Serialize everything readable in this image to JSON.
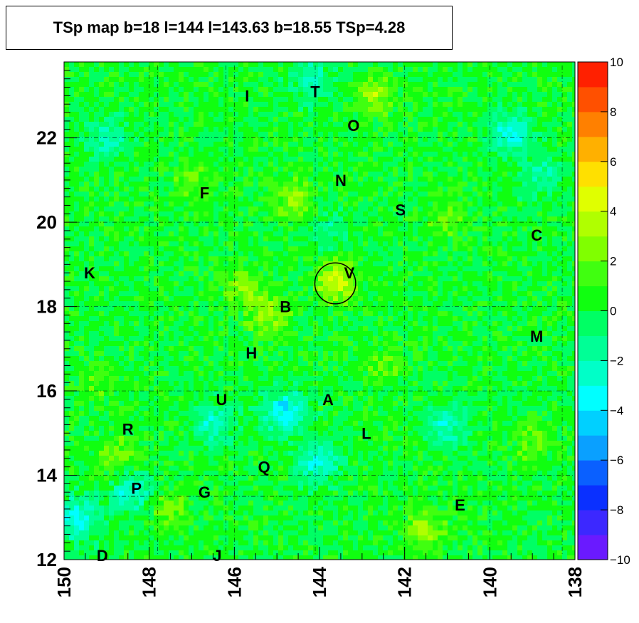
{
  "chart_data": {
    "type": "heatmap",
    "title": "TSp map b=18 l=144 l=143.63 b=18.55 TSp=4.28",
    "x_axis": {
      "range": [
        150,
        138
      ],
      "reversed": true,
      "tick_labels": [
        "150",
        "148",
        "146",
        "144",
        "142",
        "140",
        "138"
      ]
    },
    "y_axis": {
      "range": [
        12,
        23.8
      ],
      "tick_labels": [
        "12",
        "14",
        "16",
        "18",
        "20",
        "22"
      ]
    },
    "colorbar": {
      "range": [
        -10,
        10
      ],
      "tick_labels": [
        "10",
        "8",
        "6",
        "4",
        "2",
        "0",
        "−2",
        "−4",
        "−6",
        "−8",
        "−10"
      ],
      "colors": [
        "#6a1aff",
        "#3c28ff",
        "#0a30ff",
        "#0a60ff",
        "#0aa0ff",
        "#00d0ff",
        "#00ffff",
        "#00ffc8",
        "#00ff96",
        "#00ff64",
        "#10ff10",
        "#40ff10",
        "#80ff00",
        "#b0ff00",
        "#e0ff00",
        "#ffe000",
        "#ffb000",
        "#ff8000",
        "#ff5000",
        "#ff2000"
      ]
    },
    "background_ts": 0.2,
    "hotspots": [
      {
        "l": 143.6,
        "b": 18.6,
        "ts": 4.3
      },
      {
        "l": 145.2,
        "b": 17.8,
        "ts": 3.0
      },
      {
        "l": 142.7,
        "b": 23.0,
        "ts": 3.0
      },
      {
        "l": 144.6,
        "b": 20.5,
        "ts": 2.6
      },
      {
        "l": 141.5,
        "b": 12.7,
        "ts": 2.6
      },
      {
        "l": 145.8,
        "b": 18.5,
        "ts": 2.2
      },
      {
        "l": 147.5,
        "b": 13.2,
        "ts": 2.0
      },
      {
        "l": 148.7,
        "b": 14.5,
        "ts": 2.0
      },
      {
        "l": 141.0,
        "b": 20.1,
        "ts": 1.8
      },
      {
        "l": 139.0,
        "b": 14.8,
        "ts": 1.8
      },
      {
        "l": 142.5,
        "b": 16.6,
        "ts": 1.6
      },
      {
        "l": 147.0,
        "b": 21.0,
        "ts": 1.6
      },
      {
        "l": 149.2,
        "b": 16.2,
        "ts": 1.5
      },
      {
        "l": 144.8,
        "b": 15.5,
        "ts": -4.2
      },
      {
        "l": 144.0,
        "b": 14.3,
        "ts": -3.0
      },
      {
        "l": 139.5,
        "b": 22.1,
        "ts": -3.2
      },
      {
        "l": 141.0,
        "b": 15.2,
        "ts": -2.6
      },
      {
        "l": 149.7,
        "b": 13.0,
        "ts": -3.5
      },
      {
        "l": 148.4,
        "b": 13.6,
        "ts": -3.0
      },
      {
        "l": 146.5,
        "b": 15.2,
        "ts": -2.6
      },
      {
        "l": 149.0,
        "b": 22.0,
        "ts": -2.2
      },
      {
        "l": 144.2,
        "b": 23.4,
        "ts": -2.2
      },
      {
        "l": 138.8,
        "b": 21.1,
        "ts": -2.0
      },
      {
        "l": 143.8,
        "b": 19.8,
        "ts": -1.6
      }
    ],
    "source_circle": {
      "l": 143.63,
      "b": 18.55
    },
    "annotations": [
      {
        "text": "I",
        "l": 145.7,
        "b": 23.0
      },
      {
        "text": "T",
        "l": 144.1,
        "b": 23.1
      },
      {
        "text": "O",
        "l": 143.2,
        "b": 22.3
      },
      {
        "text": "N",
        "l": 143.5,
        "b": 21.0
      },
      {
        "text": "F",
        "l": 146.7,
        "b": 20.7
      },
      {
        "text": "S",
        "l": 142.1,
        "b": 20.3
      },
      {
        "text": "C",
        "l": 138.9,
        "b": 19.7
      },
      {
        "text": "K",
        "l": 149.4,
        "b": 18.8
      },
      {
        "text": "V",
        "l": 143.3,
        "b": 18.8
      },
      {
        "text": "B",
        "l": 144.8,
        "b": 18.0
      },
      {
        "text": "M",
        "l": 138.9,
        "b": 17.3
      },
      {
        "text": "H",
        "l": 145.6,
        "b": 16.9
      },
      {
        "text": "U",
        "l": 146.3,
        "b": 15.8
      },
      {
        "text": "A",
        "l": 143.8,
        "b": 15.8
      },
      {
        "text": "R",
        "l": 148.5,
        "b": 15.1
      },
      {
        "text": "L",
        "l": 142.9,
        "b": 15.0
      },
      {
        "text": "Q",
        "l": 145.3,
        "b": 14.2
      },
      {
        "text": "P",
        "l": 148.3,
        "b": 13.7
      },
      {
        "text": "G",
        "l": 146.7,
        "b": 13.6
      },
      {
        "text": "E",
        "l": 140.7,
        "b": 13.3
      },
      {
        "text": "D",
        "l": 149.1,
        "b": 12.1
      },
      {
        "text": "J",
        "l": 146.4,
        "b": 12.1
      }
    ],
    "grid_lines": {
      "verticals": [
        148.0,
        146.2,
        144.1,
        142.0,
        140.0,
        138.3,
        147.8,
        146.0
      ],
      "horizontals": [
        22.0,
        20.0,
        18.0,
        16.0,
        14.0,
        13.5
      ]
    },
    "grid": true
  }
}
